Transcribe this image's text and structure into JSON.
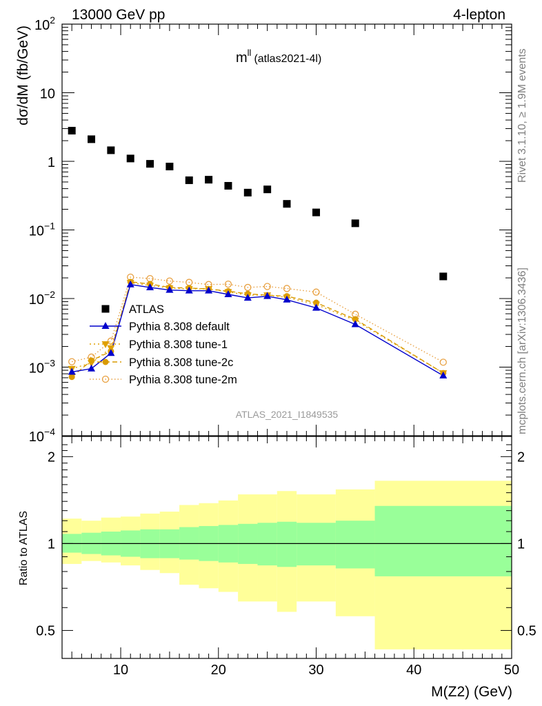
{
  "header": {
    "left": "13000 GeV pp",
    "right": "4-lepton"
  },
  "plot_title": {
    "main": "m",
    "sup": "ll",
    "sub": "(atlas2021-4l)"
  },
  "side_text": {
    "rivet": "Rivet 3.1.10, ≥ 1.9M events",
    "mcplots": "mcplots.cern.ch [arXiv:1306.3436]"
  },
  "watermark": "ATLAS_2021_I1849535",
  "colors": {
    "data": "#000000",
    "default": "#0000cc",
    "tune1": "#e0a000",
    "tune2c": "#d99a00",
    "tune2m": "#e8a040",
    "band_inner": "#99ff99",
    "band_outer": "#ffff99"
  },
  "chart_data": [
    {
      "type": "scatter",
      "title": "m^ll (atlas2021-4l)",
      "xlabel": "M(Z2) (GeV)",
      "ylabel": "dσ/dM (fb/GeV)",
      "xlim": [
        4,
        50
      ],
      "ylim": [
        0.0001,
        100
      ],
      "yscale": "log",
      "yticks": [
        "10^-4",
        "10^-3",
        "10^-2",
        "10^-1",
        "1",
        "10",
        "10^2"
      ],
      "legend_position": "middle-left",
      "series": [
        {
          "name": "ATLAS",
          "style": "data",
          "x": [
            5,
            7,
            9,
            11,
            13,
            15,
            17,
            19,
            21,
            23,
            25,
            27,
            30,
            34,
            43
          ],
          "y": [
            2.8,
            2.1,
            1.45,
            1.1,
            0.92,
            0.84,
            0.53,
            0.54,
            0.44,
            0.35,
            0.39,
            0.24,
            0.18,
            0.125,
            0.021
          ]
        },
        {
          "name": "Pythia 8.308 default",
          "style": "default",
          "x": [
            5,
            7,
            9,
            11,
            13,
            15,
            17,
            19,
            21,
            23,
            25,
            27,
            30,
            34,
            43
          ],
          "y": [
            0.00085,
            0.00095,
            0.0016,
            0.016,
            0.0145,
            0.0133,
            0.013,
            0.013,
            0.0115,
            0.0102,
            0.0108,
            0.0096,
            0.0073,
            0.0042,
            0.00075
          ]
        },
        {
          "name": "Pythia 8.308 tune-1",
          "style": "tune1",
          "x": [
            5,
            7,
            9,
            11,
            13,
            15,
            17,
            19,
            21,
            23,
            25,
            27,
            30,
            34,
            43
          ],
          "y": [
            0.00095,
            0.00115,
            0.0019,
            0.017,
            0.0155,
            0.0142,
            0.0138,
            0.0138,
            0.0125,
            0.0112,
            0.0112,
            0.0104,
            0.0082,
            0.0048,
            0.00082
          ]
        },
        {
          "name": "Pythia 8.308 tune-2c",
          "style": "tune2c",
          "x": [
            5,
            7,
            9,
            11,
            13,
            15,
            17,
            19,
            21,
            23,
            25,
            27,
            30,
            34,
            43
          ],
          "y": [
            0.00072,
            0.00125,
            0.0017,
            0.0175,
            0.0163,
            0.0145,
            0.0142,
            0.0138,
            0.0128,
            0.0117,
            0.0112,
            0.0108,
            0.0087,
            0.005,
            0.00082
          ]
        },
        {
          "name": "Pythia 8.308 tune-2m",
          "style": "tune2m",
          "x": [
            5,
            7,
            9,
            11,
            13,
            15,
            17,
            19,
            21,
            23,
            25,
            27,
            30,
            34,
            43
          ],
          "y": [
            0.0012,
            0.0014,
            0.0024,
            0.0205,
            0.0195,
            0.018,
            0.0172,
            0.016,
            0.0162,
            0.0145,
            0.015,
            0.014,
            0.0124,
            0.0059,
            0.00118
          ]
        }
      ]
    },
    {
      "type": "area",
      "ylabel": "Ratio to ATLAS",
      "xlabel": "M(Z2) (GeV)",
      "xlim": [
        4,
        50
      ],
      "ylim": [
        0.4,
        2.35
      ],
      "yticks": [
        0.5,
        1,
        2
      ],
      "xticks": [
        10,
        20,
        30,
        40,
        50
      ],
      "reference_line": 1,
      "bins": [
        {
          "lo": 4,
          "hi": 6,
          "inner": [
            0.93,
            1.08
          ],
          "outer": [
            0.85,
            1.22
          ]
        },
        {
          "lo": 6,
          "hi": 8,
          "inner": [
            0.92,
            1.09
          ],
          "outer": [
            0.87,
            1.2
          ]
        },
        {
          "lo": 8,
          "hi": 10,
          "inner": [
            0.91,
            1.1
          ],
          "outer": [
            0.86,
            1.23
          ]
        },
        {
          "lo": 10,
          "hi": 12,
          "inner": [
            0.9,
            1.11
          ],
          "outer": [
            0.84,
            1.24
          ]
        },
        {
          "lo": 12,
          "hi": 14,
          "inner": [
            0.89,
            1.12
          ],
          "outer": [
            0.81,
            1.27
          ]
        },
        {
          "lo": 14,
          "hi": 16,
          "inner": [
            0.89,
            1.12
          ],
          "outer": [
            0.79,
            1.29
          ]
        },
        {
          "lo": 16,
          "hi": 18,
          "inner": [
            0.88,
            1.14
          ],
          "outer": [
            0.72,
            1.36
          ]
        },
        {
          "lo": 18,
          "hi": 20,
          "inner": [
            0.87,
            1.15
          ],
          "outer": [
            0.7,
            1.38
          ]
        },
        {
          "lo": 20,
          "hi": 22,
          "inner": [
            0.86,
            1.16
          ],
          "outer": [
            0.68,
            1.41
          ]
        },
        {
          "lo": 22,
          "hi": 24,
          "inner": [
            0.85,
            1.17
          ],
          "outer": [
            0.63,
            1.48
          ]
        },
        {
          "lo": 24,
          "hi": 26,
          "inner": [
            0.84,
            1.18
          ],
          "outer": [
            0.63,
            1.48
          ]
        },
        {
          "lo": 26,
          "hi": 28,
          "inner": [
            0.83,
            1.19
          ],
          "outer": [
            0.58,
            1.52
          ]
        },
        {
          "lo": 28,
          "hi": 32,
          "inner": [
            0.84,
            1.18
          ],
          "outer": [
            0.63,
            1.48
          ]
        },
        {
          "lo": 32,
          "hi": 36,
          "inner": [
            0.82,
            1.2
          ],
          "outer": [
            0.56,
            1.54
          ]
        },
        {
          "lo": 36,
          "hi": 50,
          "inner": [
            0.77,
            1.35
          ],
          "outer": [
            0.43,
            1.65
          ]
        }
      ]
    }
  ]
}
